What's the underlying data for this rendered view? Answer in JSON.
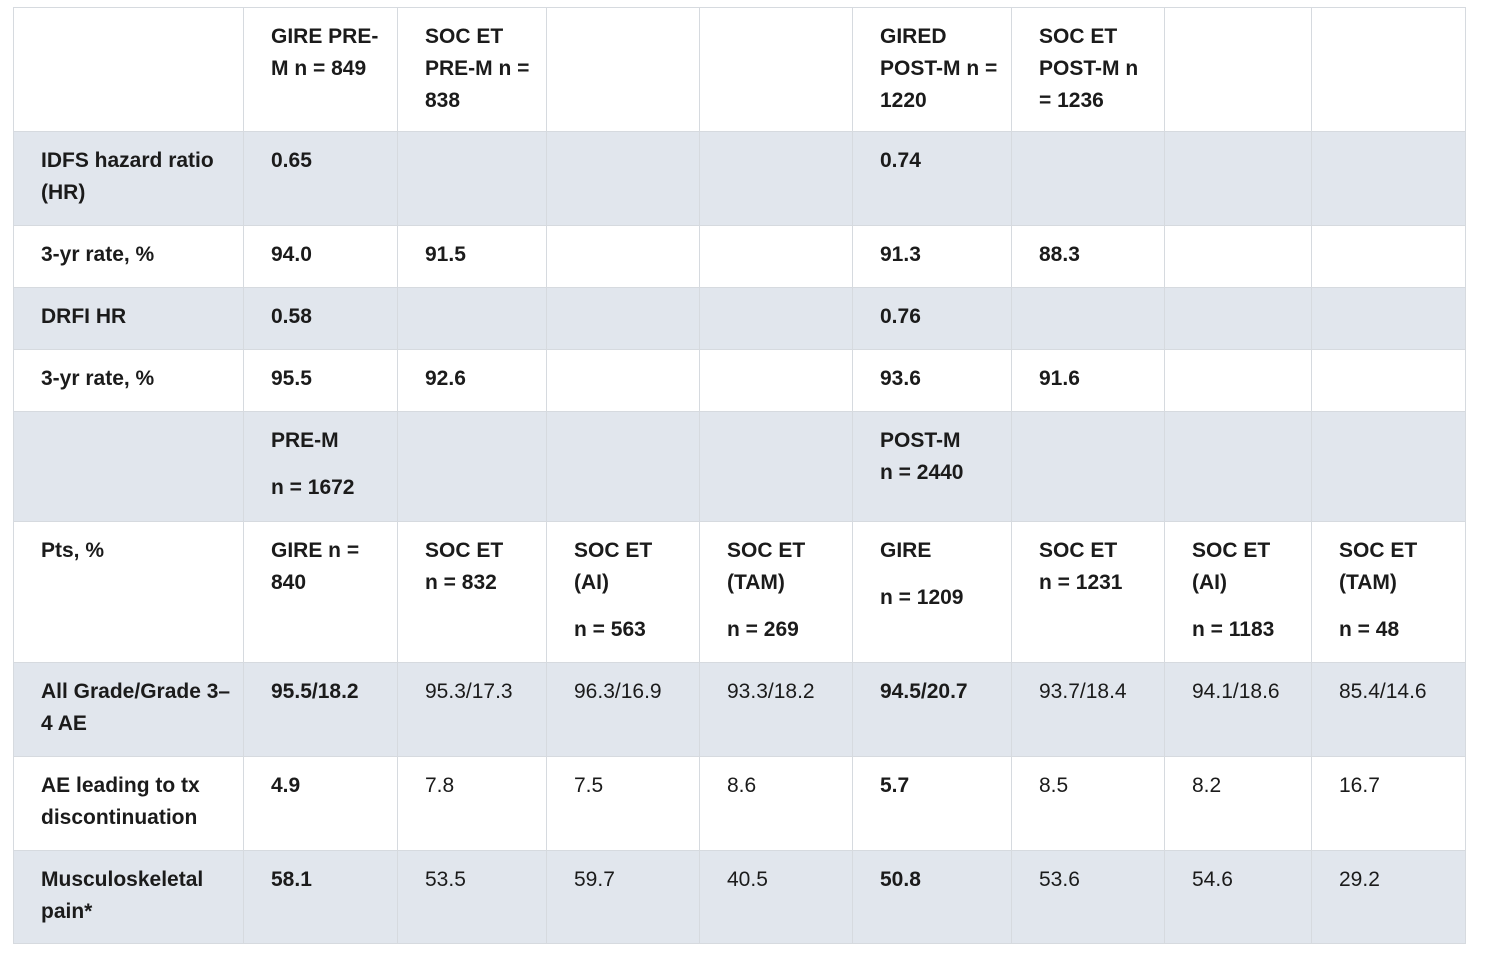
{
  "table": {
    "rows": [
      [
        [],
        [
          "GIRE PRE-M n = 849"
        ],
        [
          "SOC ET PRE-M n = 838"
        ],
        [],
        [],
        [
          "GIRED POST-M n = 1220"
        ],
        [
          "SOC ET POST-M n = 1236"
        ],
        [],
        []
      ],
      [
        [
          "IDFS hazard ratio (HR)"
        ],
        [
          "0.65"
        ],
        [],
        [],
        [],
        [
          "0.74"
        ],
        [],
        [],
        []
      ],
      [
        [
          "3-yr rate, %"
        ],
        [
          "94.0"
        ],
        [
          "91.5"
        ],
        [],
        [],
        [
          "91.3"
        ],
        [
          "88.3"
        ],
        [],
        []
      ],
      [
        [
          "DRFI HR"
        ],
        [
          "0.58"
        ],
        [],
        [],
        [],
        [
          "0.76"
        ],
        [],
        [],
        []
      ],
      [
        [
          "3-yr rate, %"
        ],
        [
          "95.5"
        ],
        [
          "92.6"
        ],
        [],
        [],
        [
          "93.6"
        ],
        [
          "91.6"
        ],
        [],
        []
      ],
      [
        [],
        [
          "PRE-M",
          "n = 1672"
        ],
        [],
        [],
        [],
        [
          "POST-M",
          "n = 2440"
        ],
        [],
        [],
        []
      ],
      [
        [
          "Pts, %"
        ],
        [
          "GIRE n = 840"
        ],
        [
          "SOC ET",
          "n = 832"
        ],
        [
          "SOC ET (AI)",
          "n = 563"
        ],
        [
          "SOC ET (TAM)",
          "n = 269"
        ],
        [
          "GIRE",
          "n = 1209"
        ],
        [
          "SOC ET",
          "n = 1231"
        ],
        [
          "SOC ET (AI)",
          "n = 1183"
        ],
        [
          "SOC ET (TAM)",
          "n = 48"
        ]
      ],
      [
        [
          "All Grade/Grade 3–4 AE"
        ],
        [
          "95.5/18.2"
        ],
        [
          "95.3/17.3"
        ],
        [
          "96.3/16.9"
        ],
        [
          "93.3/18.2"
        ],
        [
          "94.5/20.7"
        ],
        [
          "93.7/18.4"
        ],
        [
          "94.1/18.6"
        ],
        [
          "85.4/14.6"
        ]
      ],
      [
        [
          "AE leading to tx discontinuation"
        ],
        [
          "4.9"
        ],
        [
          "7.8"
        ],
        [
          "7.5"
        ],
        [
          "8.6"
        ],
        [
          "5.7"
        ],
        [
          "8.5"
        ],
        [
          "8.2"
        ],
        [
          "16.7"
        ]
      ],
      [
        [
          "Musculoskeletal pain*"
        ],
        [
          "58.1"
        ],
        [
          "53.5"
        ],
        [
          "59.7"
        ],
        [
          "40.5"
        ],
        [
          "50.8"
        ],
        [
          "53.6"
        ],
        [
          "54.6"
        ],
        [
          "29.2"
        ]
      ]
    ]
  }
}
